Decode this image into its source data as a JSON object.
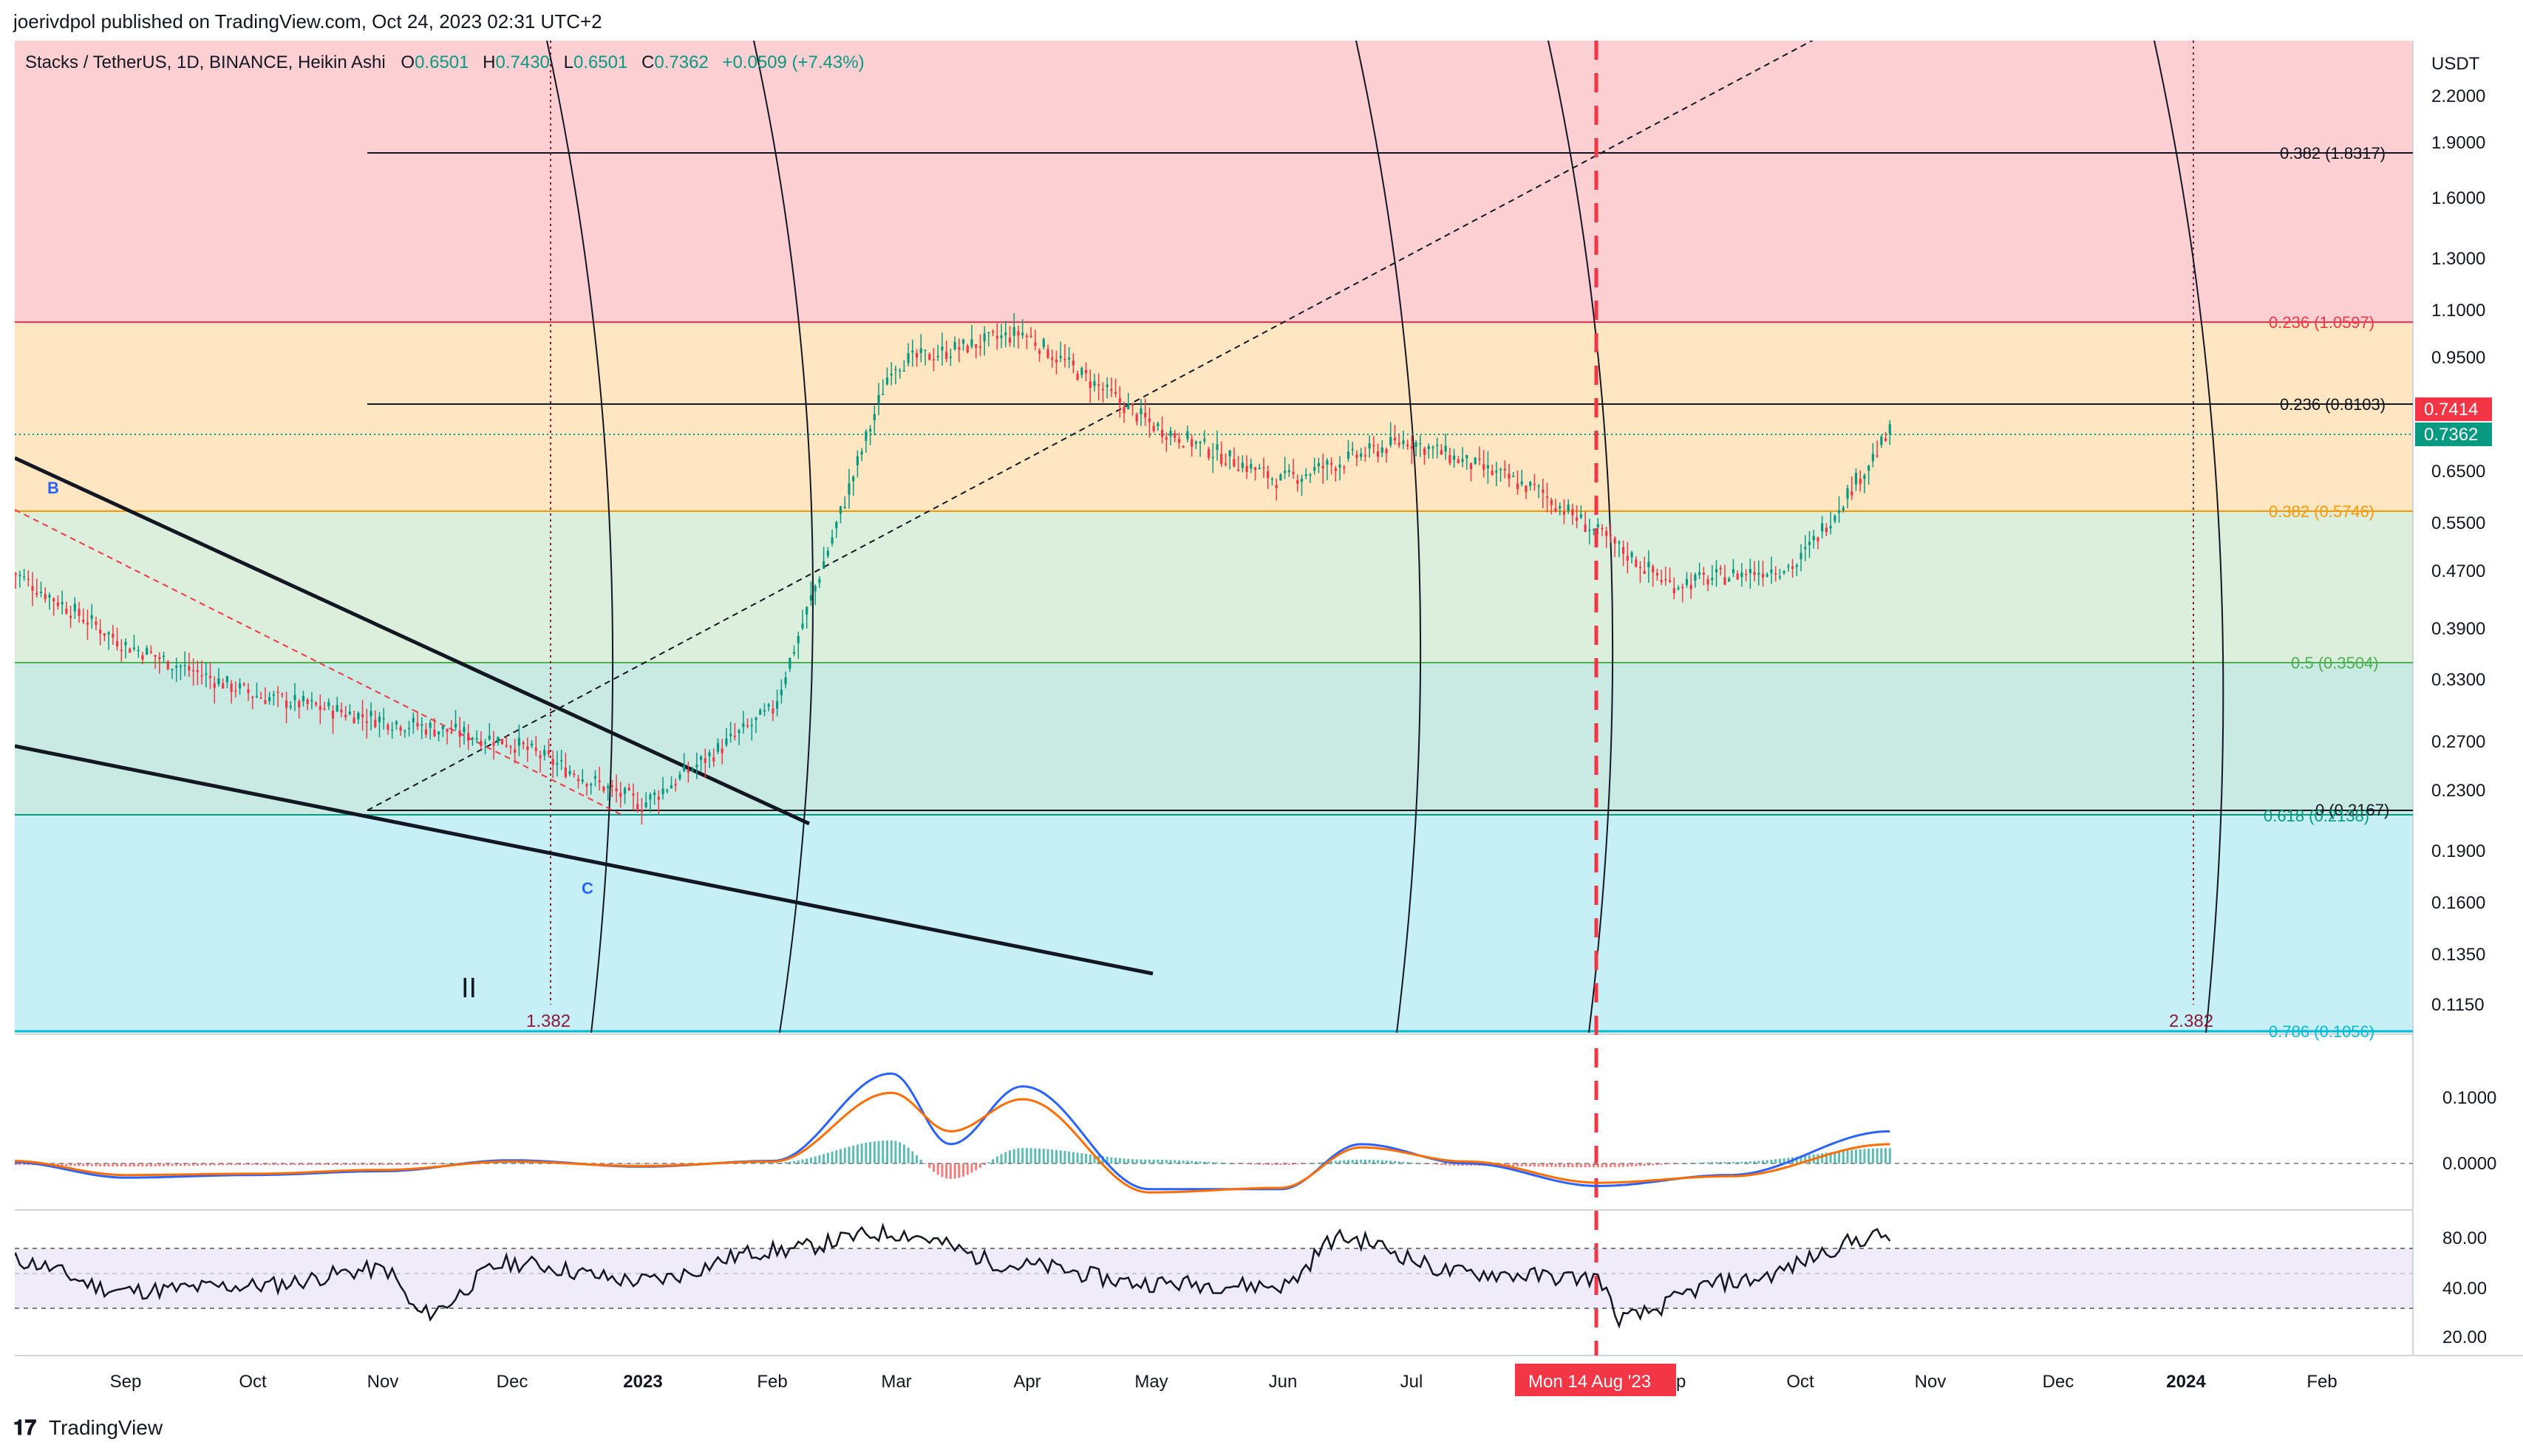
{
  "header": {
    "published_by": "joerivdpol published on TradingView.com, Oct 24, 2023 02:31 UTC+2"
  },
  "footer": {
    "brand": "TradingView"
  },
  "symbol": {
    "title": "Stacks / TetherUS, 1D, BINANCE, Heikin Ashi",
    "o_label": "O",
    "o_value": "0.6501",
    "h_label": "H",
    "h_value": "0.7430",
    "l_label": "L",
    "l_value": "0.6501",
    "c_label": "C",
    "c_value": "0.7362",
    "change": "+0.0509 (+7.43%)"
  },
  "price_scale": {
    "currency": "USDT",
    "ticks": [
      "2.2000",
      "1.9000",
      "1.6000",
      "1.3000",
      "1.1000",
      "0.9500",
      "0.6500",
      "0.5500",
      "0.4700",
      "0.3900",
      "0.3300",
      "0.2700",
      "0.2300",
      "0.1900",
      "0.1600",
      "0.1350",
      "0.1150"
    ],
    "badge_red": "0.7414",
    "badge_green": "0.7362",
    "badge_red_color": "#f23645",
    "badge_green_color": "#089981"
  },
  "time_axis": {
    "labels": [
      "Sep",
      "Oct",
      "Nov",
      "Dec",
      "2023",
      "Feb",
      "Mar",
      "Apr",
      "May",
      "Jun",
      "Jul",
      "Aug",
      "Sep",
      "Oct",
      "Nov",
      "Dec",
      "2024",
      "Feb"
    ],
    "crosshair_label": "Mon 14 Aug '23"
  },
  "fib_levels": [
    {
      "label": "0.382 (1.8317)",
      "color": "#131722"
    },
    {
      "label": "0.236 (1.0597)",
      "color": "#f23645"
    },
    {
      "label": "0.236 (0.8103)",
      "color": "#131722"
    },
    {
      "label": "0.382 (0.5746)",
      "color": "#ff9800"
    },
    {
      "label": "0.5 (0.3504)",
      "color": "#4caf50"
    },
    {
      "label": "0 (0.2167)",
      "color": "#131722"
    },
    {
      "label": "0.618 (0.2138)",
      "color": "#089981"
    },
    {
      "label": "0.786 (0.1056)",
      "color": "#00bcd4"
    }
  ],
  "annotations": {
    "wave_b": "B",
    "wave_c": "C",
    "wave_ii": "II",
    "time_fib_1": "1.382",
    "time_fib_2": "2.382"
  },
  "macd_scale": [
    "0.1000",
    "0.0000"
  ],
  "rsi_scale": [
    "80.00",
    "40.00",
    "20.00"
  ],
  "chart_data": [
    {
      "type": "candlestick",
      "title": "Stacks / TetherUS, 1D, BINANCE, Heikin Ashi",
      "y_scale": "log",
      "ylim": [
        0.105,
        2.4
      ],
      "x": [
        "2022-08-05",
        "2022-09-01",
        "2022-10-01",
        "2022-11-01",
        "2022-12-01",
        "2023-01-01",
        "2023-02-01",
        "2023-03-01",
        "2023-04-01",
        "2023-05-01",
        "2023-06-01",
        "2023-07-01",
        "2023-08-01",
        "2023-09-01",
        "2023-10-01",
        "2023-10-23"
      ],
      "series": [
        {
          "values": [
            0.47,
            0.37,
            0.315,
            0.29,
            0.27,
            0.22,
            0.3,
            0.92,
            1.02,
            0.76,
            0.63,
            0.72,
            0.61,
            0.45,
            0.48,
            0.7362
          ]
        }
      ],
      "horizontal_levels": [
        1.8317,
        1.0597,
        0.8103,
        0.5746,
        0.3504,
        0.2167,
        0.2138,
        0.1056
      ],
      "crosshair_date": "2023-08-14"
    },
    {
      "type": "line",
      "title": "",
      "ylim": [
        -0.06,
        0.13
      ],
      "x": [
        "2022-08-05",
        "2022-09-01",
        "2022-10-01",
        "2022-11-01",
        "2022-12-01",
        "2023-01-01",
        "2023-02-01",
        "2023-03-01",
        "2023-03-15",
        "2023-04-01",
        "2023-05-01",
        "2023-06-01",
        "2023-06-20",
        "2023-07-15",
        "2023-08-15",
        "2023-09-15",
        "2023-10-23"
      ],
      "series": [
        {
          "values": [
            0.002,
            -0.022,
            -0.018,
            -0.012,
            0.005,
            -0.005,
            0.004,
            0.14,
            0.03,
            0.12,
            -0.04,
            -0.04,
            0.03,
            0.0,
            -0.035,
            -0.018,
            0.05
          ]
        },
        {
          "values": [
            0.004,
            -0.018,
            -0.016,
            -0.01,
            0.003,
            -0.004,
            0.003,
            0.11,
            0.05,
            0.1,
            -0.045,
            -0.038,
            0.025,
            0.003,
            -0.03,
            -0.02,
            0.03
          ]
        }
      ]
    },
    {
      "type": "line",
      "title": "",
      "ylim": [
        14,
        90
      ],
      "x": [
        "2022-08-05",
        "2022-09-01",
        "2022-10-01",
        "2022-11-01",
        "2022-11-10",
        "2022-12-01",
        "2023-01-01",
        "2023-02-01",
        "2023-03-01",
        "2023-04-01",
        "2023-05-01",
        "2023-06-01",
        "2023-06-15",
        "2023-07-15",
        "2023-08-15",
        "2023-08-20",
        "2023-09-15",
        "2023-10-23"
      ],
      "series": [
        {
          "values": [
            62,
            38,
            42,
            55,
            20,
            60,
            46,
            70,
            84,
            58,
            44,
            42,
            80,
            52,
            48,
            16,
            45,
            82
          ]
        }
      ],
      "bands": [
        30,
        50,
        70
      ]
    }
  ]
}
